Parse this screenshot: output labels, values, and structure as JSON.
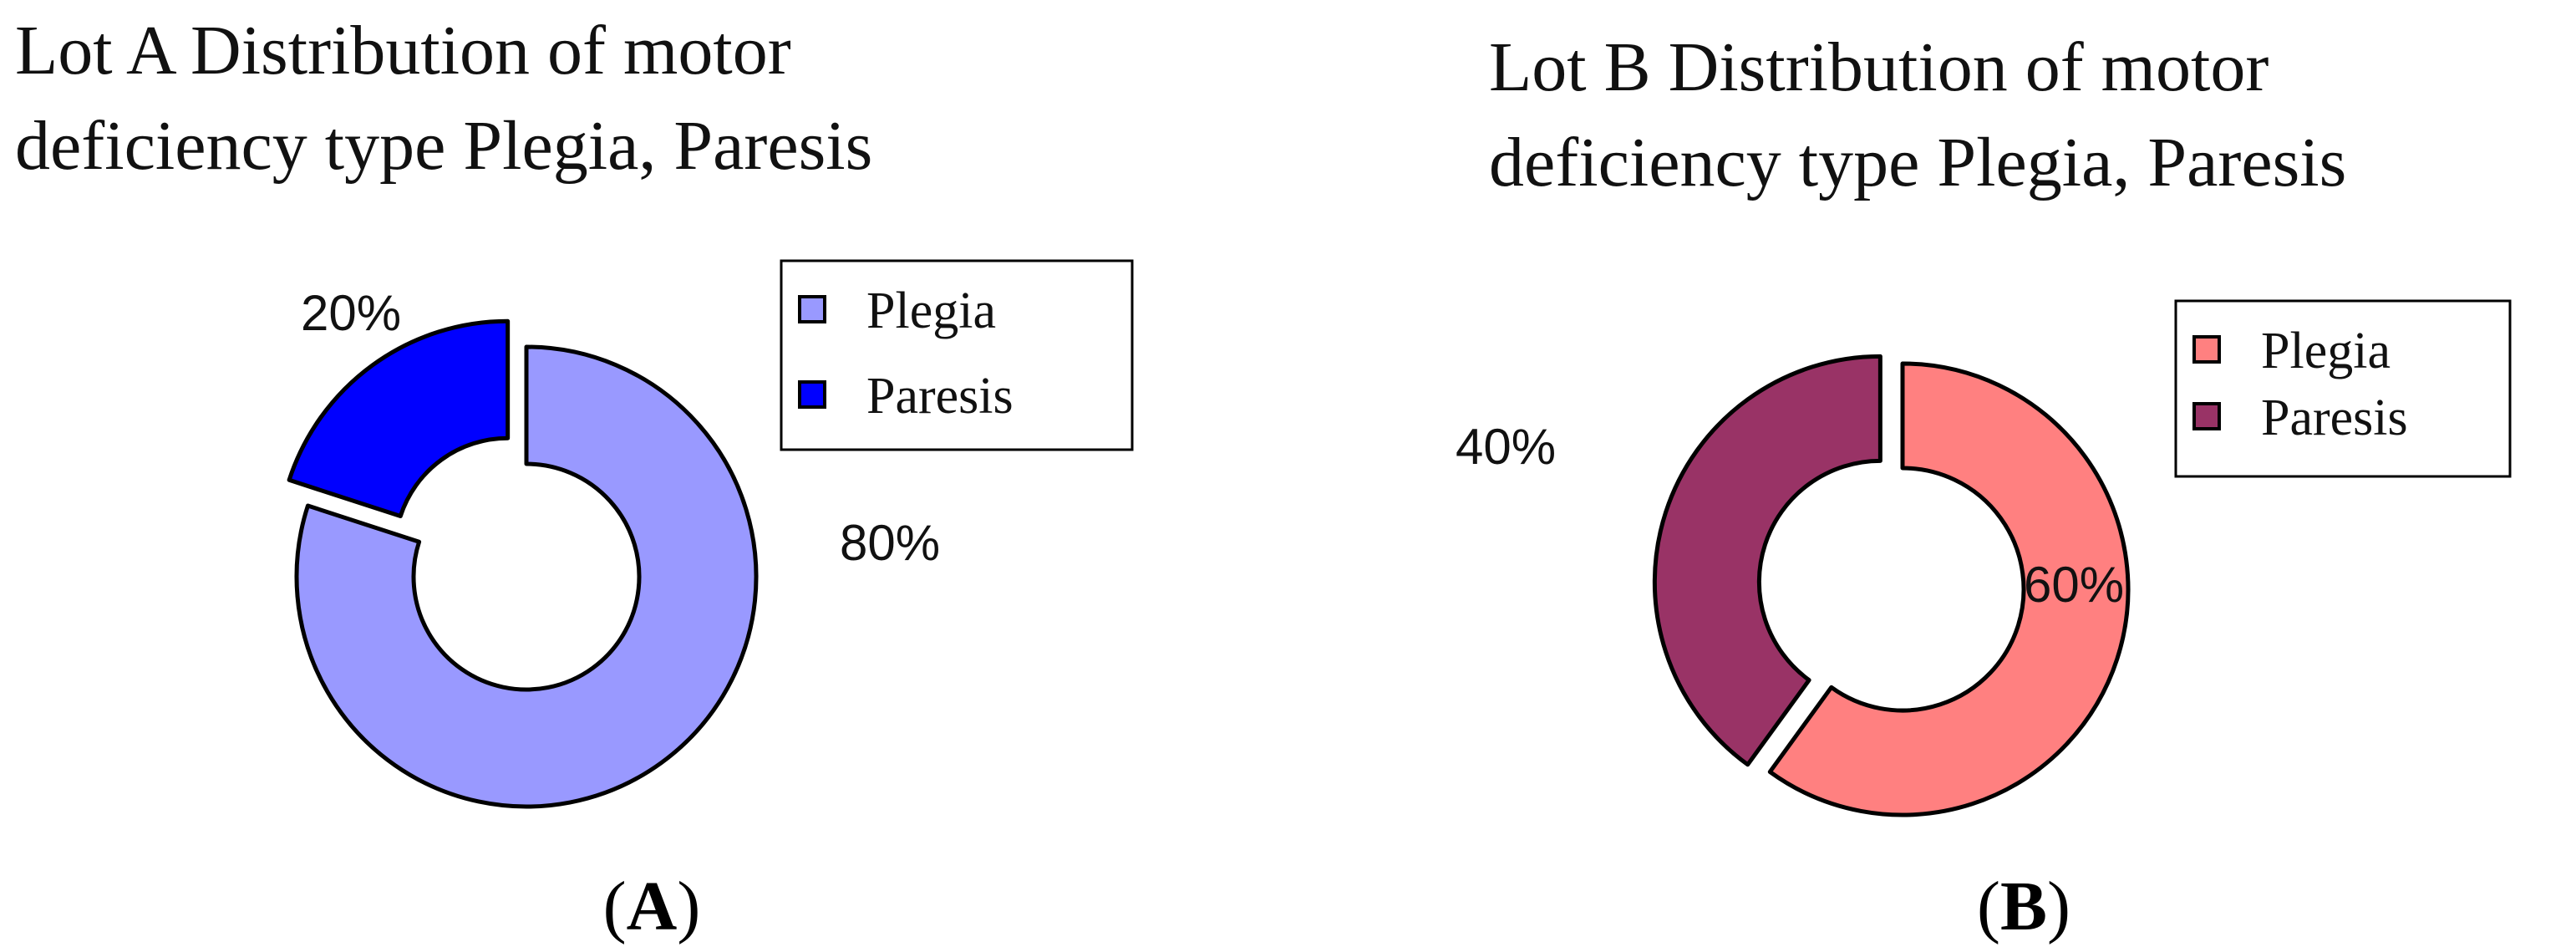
{
  "chart_data": [
    {
      "type": "pie",
      "title_line1": "Lot A Distribution of motor",
      "title_line2": "deficiency type Plegia, Paresis",
      "panel_open": "(",
      "panel_letter": "A",
      "panel_close": ")",
      "categories": [
        "Plegia",
        "Paresis"
      ],
      "values": [
        80,
        20
      ],
      "labels": [
        "80%",
        "20%"
      ],
      "colors": [
        "#9999FF",
        "#0000FF"
      ],
      "donut": true,
      "exploded": "Paresis",
      "legend": "top-right"
    },
    {
      "type": "pie",
      "title_line1": "Lot B Distribution of motor",
      "title_line2": "deficiency type Plegia, Paresis",
      "panel_open": "(",
      "panel_letter": "B",
      "panel_close": ")",
      "categories": [
        "Plegia",
        "Paresis"
      ],
      "values": [
        60,
        40
      ],
      "labels": [
        "60%",
        "40%"
      ],
      "colors": [
        "#FF8080",
        "#993366"
      ],
      "donut": true,
      "exploded": "Paresis",
      "legend": "top-right"
    }
  ]
}
